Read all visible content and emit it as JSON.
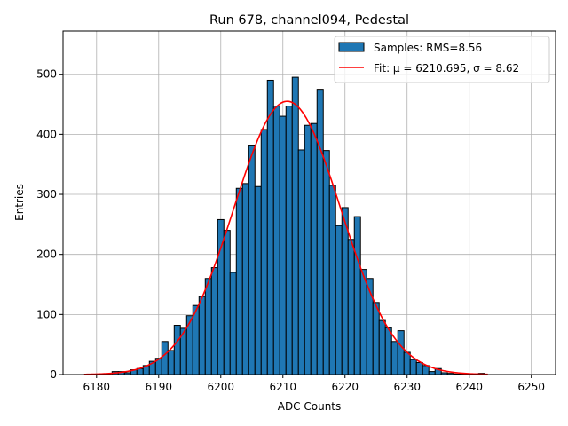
{
  "chart_data": {
    "type": "bar",
    "title": "Run 678, channel094, Pedestal",
    "xlabel": "ADC Counts",
    "ylabel": "Entries",
    "xlim": [
      6174.6,
      6253.9
    ],
    "ylim": [
      0,
      572
    ],
    "grid": true,
    "legend_placement": "top-right",
    "x_ticks": [
      6180,
      6190,
      6200,
      6210,
      6220,
      6230,
      6240,
      6250
    ],
    "y_ticks": [
      0,
      100,
      200,
      300,
      400,
      500
    ],
    "bin_width": 1,
    "bins": [
      6183,
      6184,
      6185,
      6186,
      6187,
      6188,
      6189,
      6190,
      6191,
      6192,
      6193,
      6194,
      6195,
      6196,
      6197,
      6198,
      6199,
      6200,
      6201,
      6202,
      6203,
      6204,
      6205,
      6206,
      6207,
      6208,
      6209,
      6210,
      6211,
      6212,
      6213,
      6214,
      6215,
      6216,
      6217,
      6218,
      6219,
      6220,
      6221,
      6222,
      6223,
      6224,
      6225,
      6226,
      6227,
      6228,
      6229,
      6230,
      6231,
      6232,
      6233,
      6234,
      6235,
      6236,
      6237,
      6238,
      6239,
      6240,
      6241,
      6242
    ],
    "values": [
      5,
      5,
      3,
      8,
      10,
      15,
      22,
      27,
      55,
      40,
      82,
      77,
      98,
      115,
      130,
      160,
      178,
      258,
      240,
      170,
      310,
      318,
      382,
      313,
      408,
      490,
      447,
      430,
      447,
      495,
      374,
      415,
      418,
      475,
      373,
      315,
      248,
      278,
      225,
      263,
      175,
      160,
      120,
      90,
      78,
      55,
      73,
      37,
      25,
      20,
      15,
      5,
      10,
      3,
      2,
      1,
      1,
      1,
      1,
      2
    ],
    "fit": {
      "mu": 6210.695,
      "sigma": 8.62,
      "amplitude": 455,
      "range": [
        6178,
        6243
      ]
    },
    "series": [
      {
        "name": "Samples: RMS=8.56",
        "kind": "histogram",
        "color": "#1f77b4"
      },
      {
        "name": "Fit: μ = 6210.695, σ = 8.62",
        "kind": "line",
        "color": "#ff0000"
      }
    ]
  }
}
